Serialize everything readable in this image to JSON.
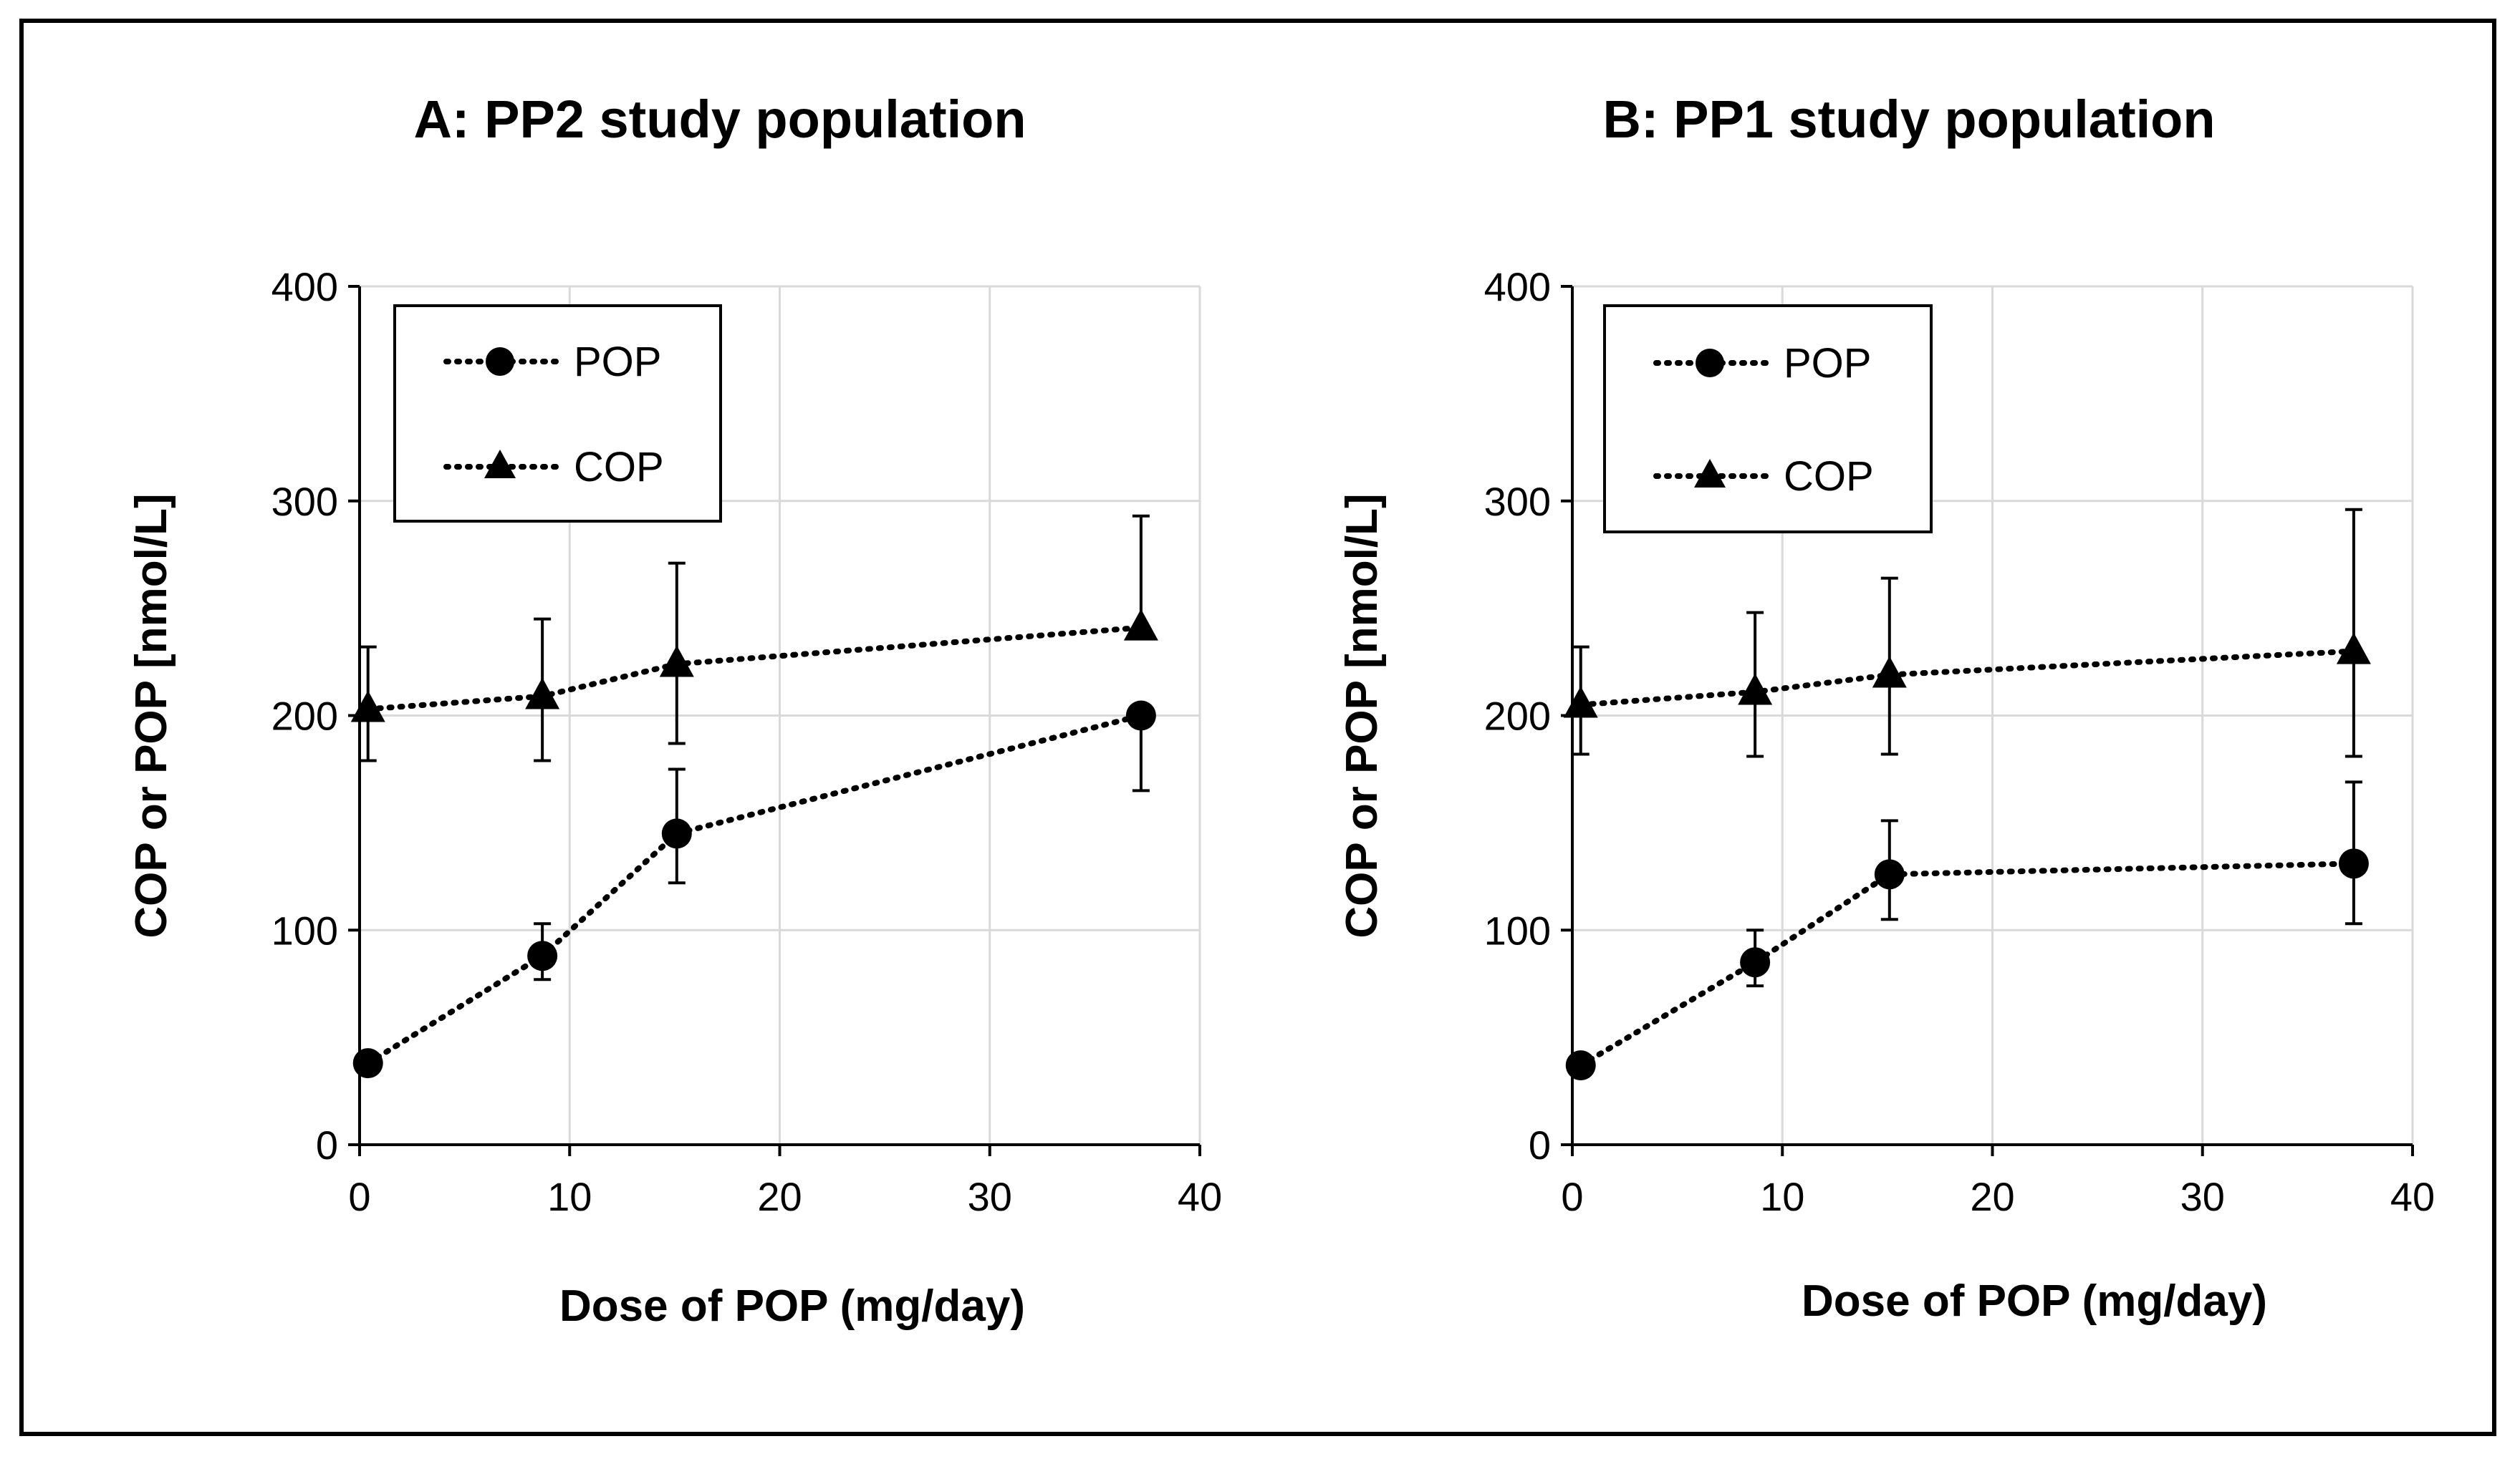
{
  "chart_data": [
    {
      "type": "line",
      "title": "A: PP2 study population",
      "xlabel": "Dose of POP (mg/day)",
      "ylabel": "COP or POP [nmol/L]",
      "xlim": [
        0,
        40
      ],
      "ylim": [
        0,
        400
      ],
      "xticks": [
        "0",
        "10",
        "20",
        "30",
        "40"
      ],
      "yticks": [
        "0",
        "100",
        "200",
        "300",
        "400"
      ],
      "grid": true,
      "legend_position": "top-left",
      "series": [
        {
          "name": "POP",
          "marker": "circle",
          "x": [
            0.4,
            8.7,
            15.1,
            37.2
          ],
          "y": [
            38,
            88,
            145,
            200
          ],
          "err_low": [
            38,
            77,
            122,
            165
          ],
          "err_high": [
            38,
            103,
            175,
            200
          ]
        },
        {
          "name": "COP",
          "marker": "triangle",
          "x": [
            0.4,
            8.7,
            15.1,
            37.2
          ],
          "y": [
            203,
            209,
            224,
            241
          ],
          "err_low": [
            179,
            179,
            187,
            241
          ],
          "err_high": [
            232,
            245,
            271,
            293
          ]
        }
      ]
    },
    {
      "type": "line",
      "title": "B: PP1 study population",
      "xlabel": "Dose of POP (mg/day)",
      "ylabel": "COP or POP [nmol/L]",
      "xlim": [
        0,
        40
      ],
      "ylim": [
        0,
        400
      ],
      "xticks": [
        "0",
        "10",
        "20",
        "30",
        "40"
      ],
      "yticks": [
        "0",
        "100",
        "200",
        "300",
        "400"
      ],
      "grid": true,
      "legend_position": "top-left",
      "series": [
        {
          "name": "POP",
          "marker": "circle",
          "x": [
            0.4,
            8.7,
            15.1,
            37.2
          ],
          "y": [
            37,
            85,
            126,
            131
          ],
          "err_low": [
            37,
            74,
            105,
            103
          ],
          "err_high": [
            37,
            100,
            151,
            169
          ]
        },
        {
          "name": "COP",
          "marker": "triangle",
          "x": [
            0.4,
            8.7,
            15.1,
            37.2
          ],
          "y": [
            205,
            211,
            219,
            230
          ],
          "err_low": [
            182,
            181,
            182,
            181
          ],
          "err_high": [
            232,
            248,
            264,
            296
          ]
        }
      ]
    }
  ]
}
